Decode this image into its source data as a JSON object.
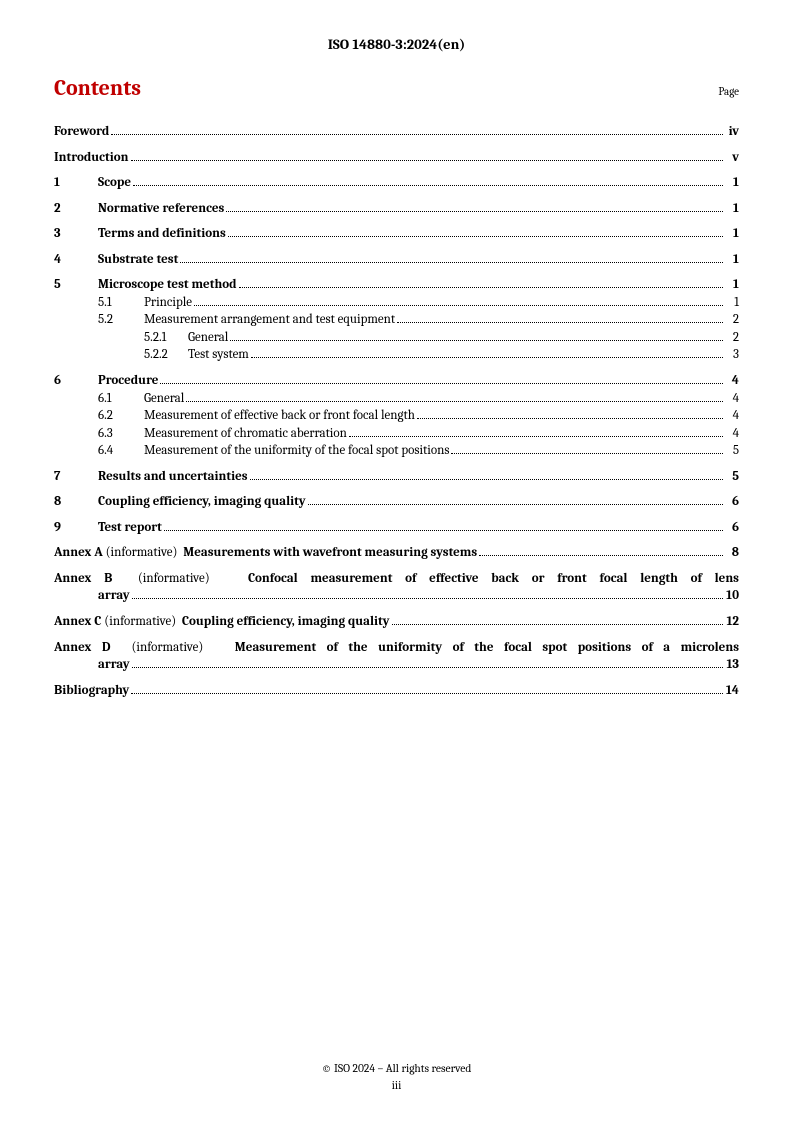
{
  "header": {
    "doc_id": "ISO 14880-3:2024(en)"
  },
  "contents": {
    "title": "Contents",
    "page_label": "Page"
  },
  "toc": {
    "foreword": {
      "title": "Foreword",
      "page": "iv"
    },
    "introduction": {
      "title": "Introduction",
      "page": "v"
    },
    "s1": {
      "num": "1",
      "title": "Scope",
      "page": "1"
    },
    "s2": {
      "num": "2",
      "title": "Normative references",
      "page": "1"
    },
    "s3": {
      "num": "3",
      "title": "Terms and definitions",
      "page": "1"
    },
    "s4": {
      "num": "4",
      "title": "Substrate test",
      "page": "1"
    },
    "s5": {
      "num": "5",
      "title": "Microscope test method",
      "page": "1",
      "s5_1": {
        "num": "5.1",
        "title": "Principle",
        "page": "1"
      },
      "s5_2": {
        "num": "5.2",
        "title": "Measurement arrangement and test equipment",
        "page": "2",
        "s5_2_1": {
          "num": "5.2.1",
          "title": "General",
          "page": "2"
        },
        "s5_2_2": {
          "num": "5.2.2",
          "title": "Test system",
          "page": "3"
        }
      }
    },
    "s6": {
      "num": "6",
      "title": "Procedure",
      "page": "4",
      "s6_1": {
        "num": "6.1",
        "title": "General",
        "page": "4"
      },
      "s6_2": {
        "num": "6.2",
        "title": "Measurement of effective back or front focal length",
        "page": "4"
      },
      "s6_3": {
        "num": "6.3",
        "title": "Measurement of chromatic aberration",
        "page": "4"
      },
      "s6_4": {
        "num": "6.4",
        "title": "Measurement of the uniformity of the focal spot positions",
        "page": "5"
      }
    },
    "s7": {
      "num": "7",
      "title": "Results and uncertainties",
      "page": "5"
    },
    "s8": {
      "num": "8",
      "title": "Coupling efficiency, imaging quality",
      "page": "6"
    },
    "s9": {
      "num": "9",
      "title": "Test report",
      "page": "6"
    },
    "annexA": {
      "label": "Annex A",
      "info": "(informative)",
      "title": "Measurements with wavefront measuring systems",
      "page": "8"
    },
    "annexB": {
      "label": "Annex B",
      "info": "(informative)",
      "title_l1": "Confocal measurement of effective back or front focal length of lens",
      "title_l2": "array",
      "page": "10"
    },
    "annexC": {
      "label": "Annex C",
      "info": "(informative)",
      "title": "Coupling efficiency, imaging quality",
      "page": "12"
    },
    "annexD": {
      "label": "Annex D",
      "info": "(informative)",
      "title_l1": "Measurement of the uniformity of the focal spot positions of a microlens",
      "title_l2": "array",
      "page": "13"
    },
    "bibliography": {
      "title": "Bibliography",
      "page": "14"
    }
  },
  "footer": {
    "copyright": "© ISO 2024 – All rights reserved",
    "page_num": "iii"
  }
}
